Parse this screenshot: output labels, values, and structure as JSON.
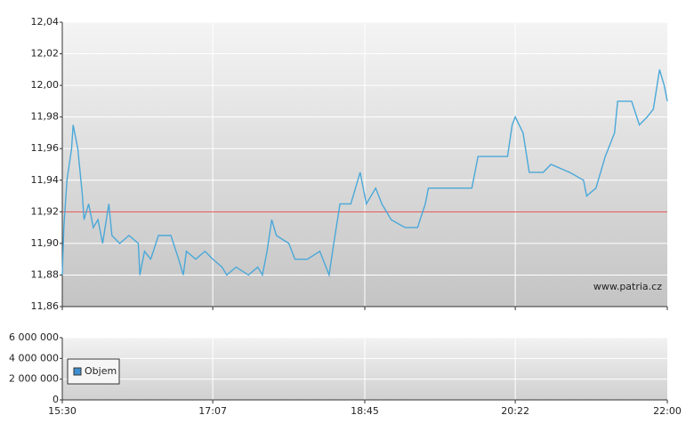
{
  "chart_data": [
    {
      "type": "line",
      "x": [
        "15:30",
        "15:31",
        "15:33",
        "15:36",
        "15:37",
        "15:40",
        "15:43",
        "15:44",
        "15:47",
        "15:50",
        "15:53",
        "15:56",
        "16:00",
        "16:02",
        "16:07",
        "16:13",
        "16:19",
        "16:20",
        "16:23",
        "16:27",
        "16:32",
        "16:40",
        "16:45",
        "16:48",
        "16:50",
        "16:56",
        "17:02",
        "17:07",
        "17:13",
        "17:16",
        "17:22",
        "17:30",
        "17:36",
        "17:39",
        "17:42",
        "17:45",
        "17:48",
        "17:56",
        "18:00",
        "18:08",
        "18:16",
        "18:22",
        "18:25",
        "18:29",
        "18:36",
        "18:42",
        "18:46",
        "18:52",
        "18:56",
        "19:02",
        "19:11",
        "19:19",
        "19:24",
        "19:26",
        "19:37",
        "19:45",
        "19:54",
        "19:58",
        "20:08",
        "20:17",
        "20:20",
        "20:22",
        "20:27",
        "20:31",
        "20:40",
        "20:45",
        "20:57",
        "21:06",
        "21:08",
        "21:14",
        "21:20",
        "21:26",
        "21:28",
        "21:37",
        "21:42",
        "21:47",
        "21:51",
        "21:55",
        "21:58",
        "22:00"
      ],
      "values": [
        11.88,
        11.91,
        11.94,
        11.96,
        11.975,
        11.96,
        11.93,
        11.915,
        11.925,
        11.91,
        11.915,
        11.9,
        11.925,
        11.905,
        11.9,
        11.905,
        11.9,
        11.88,
        11.895,
        11.89,
        11.905,
        11.905,
        11.89,
        11.88,
        11.895,
        11.89,
        11.895,
        11.89,
        11.885,
        11.88,
        11.885,
        11.88,
        11.885,
        11.88,
        11.895,
        11.915,
        11.905,
        11.9,
        11.89,
        11.89,
        11.895,
        11.88,
        11.9,
        11.925,
        11.925,
        11.945,
        11.925,
        11.935,
        11.925,
        11.915,
        11.91,
        11.91,
        11.925,
        11.935,
        11.935,
        11.935,
        11.935,
        11.955,
        11.955,
        11.955,
        11.975,
        11.98,
        11.97,
        11.945,
        11.945,
        11.95,
        11.945,
        11.94,
        11.93,
        11.935,
        11.955,
        11.97,
        11.99,
        11.99,
        11.975,
        11.98,
        11.985,
        12.01,
        12.0,
        11.99
      ],
      "color": "#4aa8d8",
      "reference_line": 11.92,
      "reference_color": "#e05050",
      "xlim": [
        "15:30",
        "22:00"
      ],
      "ylim": [
        11.86,
        12.04
      ],
      "yticks": [
        {
          "value": 11.86,
          "label": "11,86"
        },
        {
          "value": 11.88,
          "label": "11,88"
        },
        {
          "value": 11.9,
          "label": "11,90"
        },
        {
          "value": 11.92,
          "label": "11,92"
        },
        {
          "value": 11.94,
          "label": "11,94"
        },
        {
          "value": 11.96,
          "label": "11,96"
        },
        {
          "value": 11.98,
          "label": "11,98"
        },
        {
          "value": 12.0,
          "label": "12,00"
        },
        {
          "value": 12.02,
          "label": "12,02"
        },
        {
          "value": 12.04,
          "label": "12,04"
        }
      ],
      "grid": true,
      "watermark": "www.patria.cz"
    },
    {
      "type": "bar",
      "series": [
        {
          "name": "Objem",
          "color": "#3d8fcf",
          "values": [
            0,
            0,
            0,
            0,
            0,
            0,
            0,
            0,
            0,
            0,
            0,
            0,
            0,
            0,
            0,
            0,
            0,
            0,
            0,
            0,
            0,
            0,
            0,
            0,
            0,
            0,
            0,
            0,
            0,
            0,
            0,
            0,
            0,
            0,
            0,
            0,
            0,
            0,
            0,
            0,
            0,
            0,
            0,
            0,
            0,
            0,
            0,
            0,
            0,
            0,
            0,
            0,
            0,
            0,
            0,
            0,
            0,
            0,
            0,
            0,
            0,
            0,
            0,
            0,
            0,
            0,
            0,
            0,
            0,
            0,
            0,
            0,
            0,
            0,
            0,
            0,
            0,
            0,
            0,
            0
          ]
        }
      ],
      "xlim": [
        "15:30",
        "22:00"
      ],
      "xticks": [
        "15:30",
        "17:07",
        "18:45",
        "20:22",
        "22:00"
      ],
      "ylim": [
        0,
        6000000
      ],
      "yticks": [
        0,
        {
          "value": 2000000,
          "label": "2 000 000"
        },
        {
          "value": 4000000,
          "label": "4 000 000"
        },
        {
          "value": 6000000,
          "label": "6 000 000"
        }
      ],
      "grid": true,
      "legend": "lower left"
    }
  ]
}
